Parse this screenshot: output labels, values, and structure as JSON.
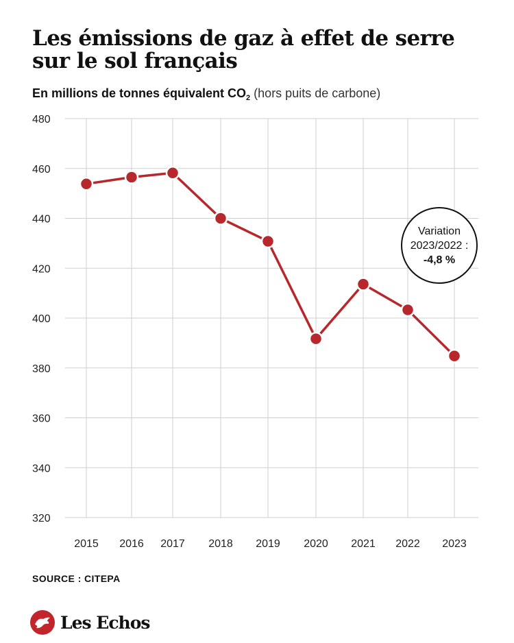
{
  "header": {
    "title_line1": "Les émissions de gaz à effet de serre",
    "title_line2": "sur le sol français",
    "subtitle_bold": "En millions de tonnes équivalent CO",
    "subtitle_sub": "2",
    "subtitle_light": " (hors puits de carbone)"
  },
  "annotation": {
    "line1": "Variation",
    "line2": "2023/2022 :",
    "value": "-4,8 %"
  },
  "footer": {
    "source": "SOURCE : CITEPA",
    "logo": "Les Echos"
  },
  "colors": {
    "line": "#b7272c",
    "grid": "#cfcfcf",
    "logo": "#c0262b"
  },
  "chart_data": {
    "type": "line",
    "categories": [
      "2015",
      "2016",
      "2017",
      "2018",
      "2019",
      "2020",
      "2021",
      "2022",
      "2023"
    ],
    "series": [
      {
        "values": [
          453.8,
          456.5,
          458.2,
          440.0,
          430.8,
          391.7,
          413.6,
          403.3,
          384.8
        ]
      }
    ],
    "ylim": [
      320,
      480
    ],
    "yticks": [
      320,
      340,
      360,
      380,
      400,
      420,
      440,
      460,
      480
    ],
    "grid": true,
    "legend": "none"
  }
}
